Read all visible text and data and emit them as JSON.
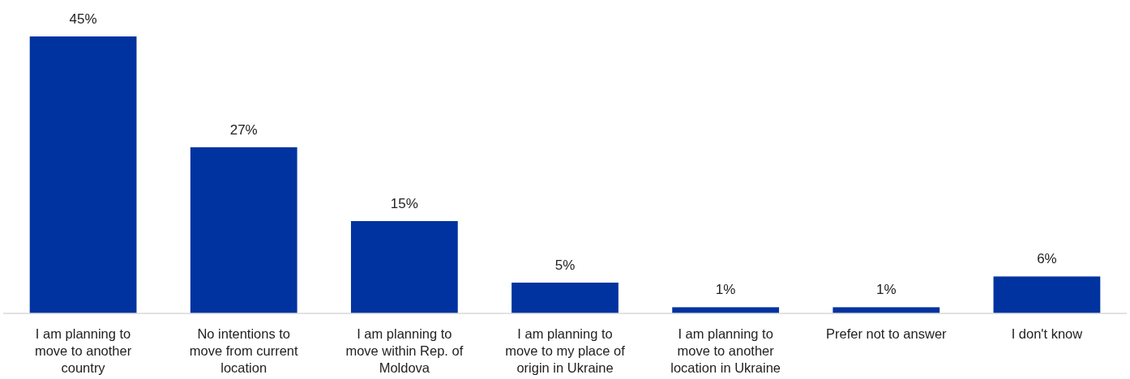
{
  "chart_data": {
    "type": "bar",
    "categories": [
      "I am planning to move to another country",
      "No intentions to move from current location",
      "I am planning to move within Rep. of Moldova",
      "I am planning to move to my place of origin in Ukraine",
      "I am planning to move to another location in Ukraine",
      "Prefer not to answer",
      "I don't know"
    ],
    "values": [
      45,
      27,
      15,
      5,
      1,
      1,
      6
    ],
    "value_labels": [
      "45%",
      "27%",
      "15%",
      "5%",
      "1%",
      "1%",
      "6%"
    ],
    "color": "#0033a0"
  }
}
